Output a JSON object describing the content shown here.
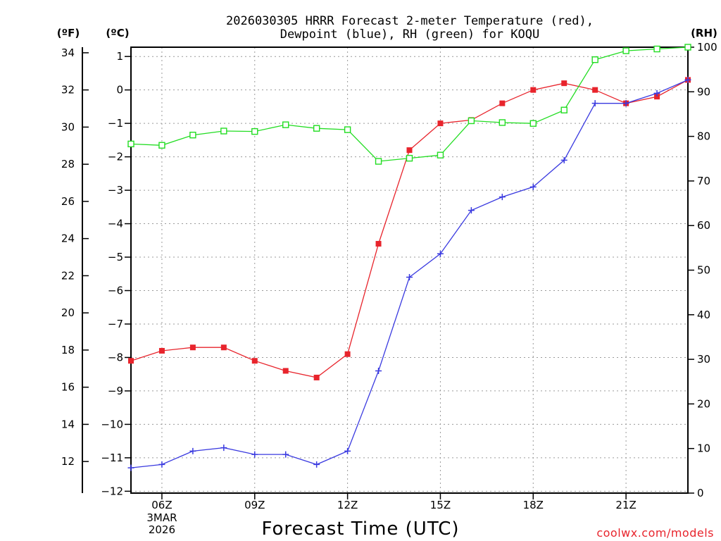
{
  "chart_data": {
    "type": "line",
    "title_lines": [
      "2026030305 HRRR Forecast 2-meter Temperature (red),",
      "Dewpoint (blue), RH (green) for KOQU"
    ],
    "units": {
      "left_outer": "(ºF)",
      "left_inner": "(ºC)",
      "right": "(RH)"
    },
    "xlabel": "Forecast Time (UTC)",
    "credit": "coolwx.com/models",
    "x_hours": [
      5,
      6,
      7,
      8,
      9,
      10,
      11,
      12,
      13,
      14,
      15,
      16,
      17,
      18,
      19,
      20,
      21,
      22,
      23
    ],
    "xlim": [
      5,
      23
    ],
    "x_ticks": [
      {
        "hour": 6,
        "label": "06Z",
        "extra": [
          "3MAR",
          "2026"
        ]
      },
      {
        "hour": 9,
        "label": "09Z"
      },
      {
        "hour": 12,
        "label": "12Z"
      },
      {
        "hour": 15,
        "label": "15Z"
      },
      {
        "hour": 18,
        "label": "18Z"
      },
      {
        "hour": 21,
        "label": "21Z"
      }
    ],
    "ylim_c": [
      -12.0556,
      1.2778
    ],
    "ylim_rh": [
      0,
      100
    ],
    "c_ticks": [
      "1",
      "0",
      "−1",
      "−2",
      "−3",
      "−4",
      "−5",
      "−6",
      "−7",
      "−8",
      "−9",
      "−10",
      "−11",
      "−12"
    ],
    "c_tick_values": [
      1,
      0,
      -1,
      -2,
      -3,
      -4,
      -5,
      -6,
      -7,
      -8,
      -9,
      -10,
      -11,
      -12
    ],
    "f_ticks": [
      "34",
      "32",
      "30",
      "28",
      "26",
      "24",
      "22",
      "20",
      "18",
      "16",
      "14",
      "12"
    ],
    "f_tick_values": [
      34,
      32,
      30,
      28,
      26,
      24,
      22,
      20,
      18,
      16,
      14,
      12
    ],
    "rh_ticks": [
      "100",
      "90",
      "80",
      "70",
      "60",
      "50",
      "40",
      "30",
      "20",
      "10",
      "0"
    ],
    "rh_tick_values": [
      100,
      90,
      80,
      70,
      60,
      50,
      40,
      30,
      20,
      10,
      0
    ],
    "series": [
      {
        "name": "Temperature (red)",
        "axis": "celsius",
        "color": "#e8242c",
        "marker": "filled-square",
        "values": [
          -8.1,
          -7.8,
          -7.7,
          -7.7,
          -8.1,
          -8.4,
          -8.6,
          -7.9,
          -4.6,
          -1.8,
          -1.0,
          -0.9,
          -0.4,
          0.0,
          0.2,
          0.0,
          -0.4,
          -0.2,
          0.3
        ]
      },
      {
        "name": "Dewpoint (blue)",
        "axis": "celsius",
        "color": "#3a3ae0",
        "marker": "plus",
        "values": [
          -11.3,
          -11.2,
          -10.8,
          -10.7,
          -10.9,
          -10.9,
          -11.2,
          -10.8,
          -8.4,
          -5.6,
          -4.9,
          -3.6,
          -3.2,
          -2.9,
          -2.1,
          -0.4,
          -0.4,
          -0.1,
          0.3
        ]
      },
      {
        "name": "RH (green)",
        "axis": "rh",
        "color": "#22dd22",
        "marker": "open-square",
        "values": [
          78.3,
          78.0,
          80.3,
          81.2,
          81.1,
          82.6,
          81.8,
          81.5,
          74.4,
          75.1,
          75.8,
          83.5,
          83.1,
          82.9,
          85.9,
          97.2,
          99.2,
          99.6,
          100.0
        ]
      }
    ]
  }
}
